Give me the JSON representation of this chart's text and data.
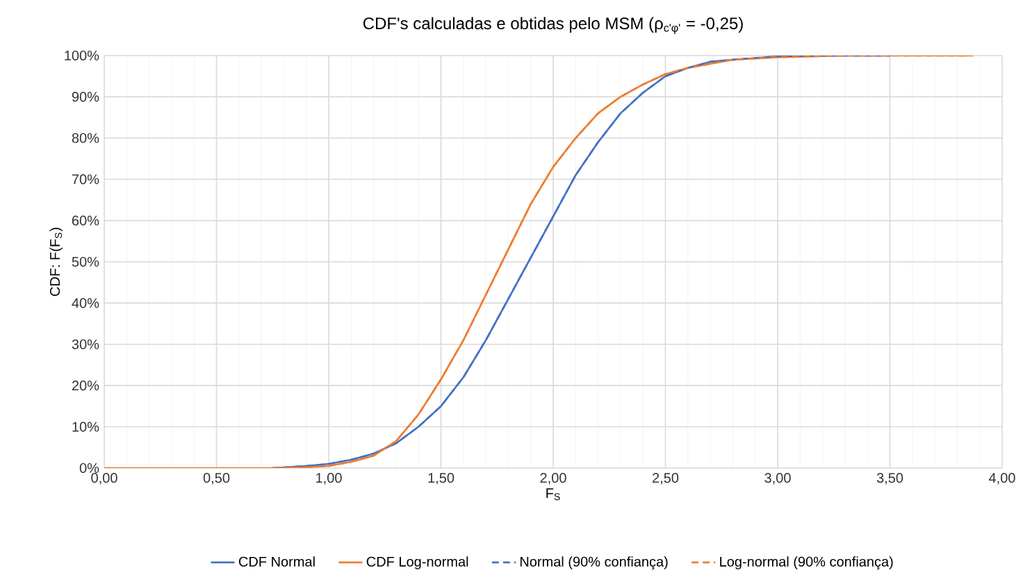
{
  "chart_data": {
    "type": "line",
    "title": "CDF's calculadas e obtidas pelo MSM (ρ$_{c'φ'}$ = -0,25)",
    "xlabel": "F$_{S}$",
    "ylabel": "CDF: F(F$_{S}$)",
    "xlim": [
      0,
      4
    ],
    "ylim": [
      0,
      100
    ],
    "xticks": [
      {
        "value": 0,
        "label": "0,00"
      },
      {
        "value": 0.5,
        "label": "0,50"
      },
      {
        "value": 1,
        "label": "1,00"
      },
      {
        "value": 1.5,
        "label": "1,50"
      },
      {
        "value": 2,
        "label": "2,00"
      },
      {
        "value": 2.5,
        "label": "2,50"
      },
      {
        "value": 3,
        "label": "3,00"
      },
      {
        "value": 3.5,
        "label": "3,50"
      },
      {
        "value": 4,
        "label": "4,00"
      }
    ],
    "yticks": [
      {
        "value": 0,
        "label": "0%"
      },
      {
        "value": 10,
        "label": "10%"
      },
      {
        "value": 20,
        "label": "20%"
      },
      {
        "value": 30,
        "label": "30%"
      },
      {
        "value": 40,
        "label": "40%"
      },
      {
        "value": 50,
        "label": "50%"
      },
      {
        "value": 60,
        "label": "60%"
      },
      {
        "value": 70,
        "label": "70%"
      },
      {
        "value": 80,
        "label": "80%"
      },
      {
        "value": 90,
        "label": "90%"
      },
      {
        "value": 100,
        "label": "100%"
      }
    ],
    "grid": true,
    "legend": "bottom",
    "marker": "none",
    "series": [
      {
        "name": "CDF Normal",
        "color": "#4472c4",
        "line_style": "solid",
        "x": [
          0.75,
          0.9,
          1.0,
          1.1,
          1.2,
          1.3,
          1.4,
          1.5,
          1.6,
          1.7,
          1.8,
          1.9,
          2.0,
          2.1,
          2.2,
          2.3,
          2.4,
          2.5,
          2.6,
          2.7,
          2.8,
          3.0,
          3.2,
          3.5
        ],
        "values": [
          0,
          0.5,
          1,
          2,
          3.5,
          6,
          10,
          15,
          22,
          31,
          41,
          51,
          61,
          71,
          79,
          86,
          91,
          95,
          97,
          98.5,
          99,
          99.8,
          100,
          100
        ]
      },
      {
        "name": "CDF Log-normal",
        "color": "#ed7d31",
        "line_style": "solid",
        "x": [
          0,
          0.75,
          0.9,
          1.0,
          1.1,
          1.2,
          1.3,
          1.4,
          1.5,
          1.6,
          1.7,
          1.8,
          1.9,
          2.0,
          2.1,
          2.2,
          2.3,
          2.4,
          2.5,
          2.6,
          2.8,
          3.0,
          3.3,
          3.5,
          3.87
        ],
        "values": [
          0,
          0,
          0.2,
          0.5,
          1.5,
          3,
          6.5,
          13,
          21.5,
          31,
          42,
          53,
          64,
          73,
          80,
          86,
          90,
          93,
          95.5,
          97,
          99,
          99.6,
          100,
          100,
          100
        ]
      },
      {
        "name": "Normal (90% confiança)",
        "color": "#4472c4",
        "line_style": "dashed",
        "x": [
          0.75,
          0.9,
          1.0,
          1.1,
          1.2,
          1.3,
          1.4,
          1.5,
          1.6,
          1.7,
          1.8,
          1.9,
          2.0,
          2.1,
          2.2,
          2.3,
          2.4,
          2.5,
          2.6,
          2.7,
          2.8,
          3.0,
          3.2,
          3.5
        ],
        "values": [
          0,
          0.5,
          1,
          2,
          3.5,
          6,
          10,
          15,
          22,
          31,
          41,
          51,
          61,
          71,
          79,
          86,
          91,
          95,
          97,
          98.5,
          99,
          99.8,
          100,
          100
        ]
      },
      {
        "name": "Log-normal (90% confiança)",
        "color": "#ed7d31",
        "line_style": "dashed",
        "x": [
          0.75,
          0.9,
          1.0,
          1.1,
          1.2,
          1.3,
          1.4,
          1.5,
          1.6,
          1.7,
          1.8,
          1.9,
          2.0,
          2.1,
          2.2,
          2.3,
          2.4,
          2.5,
          2.6,
          2.8,
          3.0,
          3.3,
          3.5,
          3.87
        ],
        "values": [
          0,
          0.2,
          0.5,
          1.5,
          3,
          6.5,
          13,
          21.5,
          31,
          42,
          53,
          64,
          73,
          80,
          86,
          90,
          93,
          95.5,
          97,
          99,
          99.6,
          100,
          100,
          100
        ]
      }
    ]
  }
}
